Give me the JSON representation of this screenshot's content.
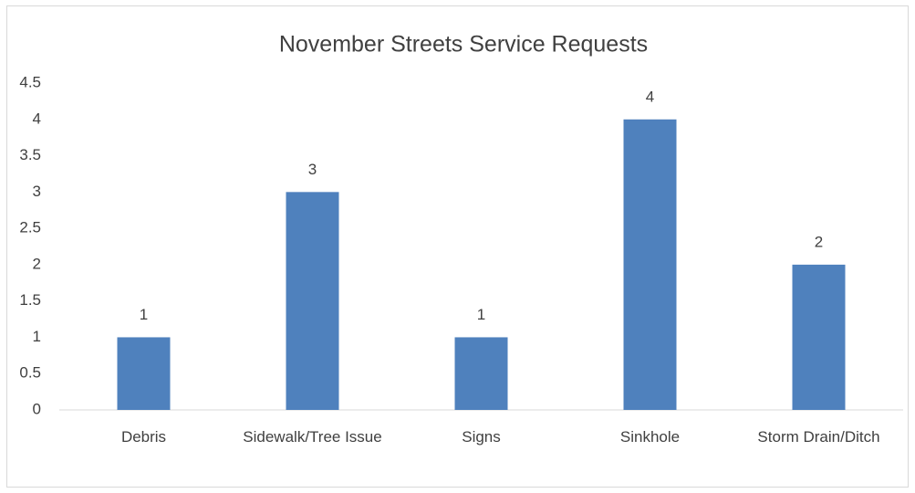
{
  "chart_data": {
    "type": "bar",
    "title": "November Streets Service Requests",
    "categories": [
      "Debris",
      "Sidewalk/Tree Issue",
      "Signs",
      "Sinkhole",
      "Storm Drain/Ditch"
    ],
    "values": [
      1,
      3,
      1,
      4,
      2
    ],
    "color": "#4f81bd",
    "ylim": [
      0,
      4.5
    ],
    "yticks": [
      0,
      0.5,
      1,
      1.5,
      2,
      2.5,
      3,
      3.5,
      4,
      4.5
    ],
    "grid": false
  }
}
